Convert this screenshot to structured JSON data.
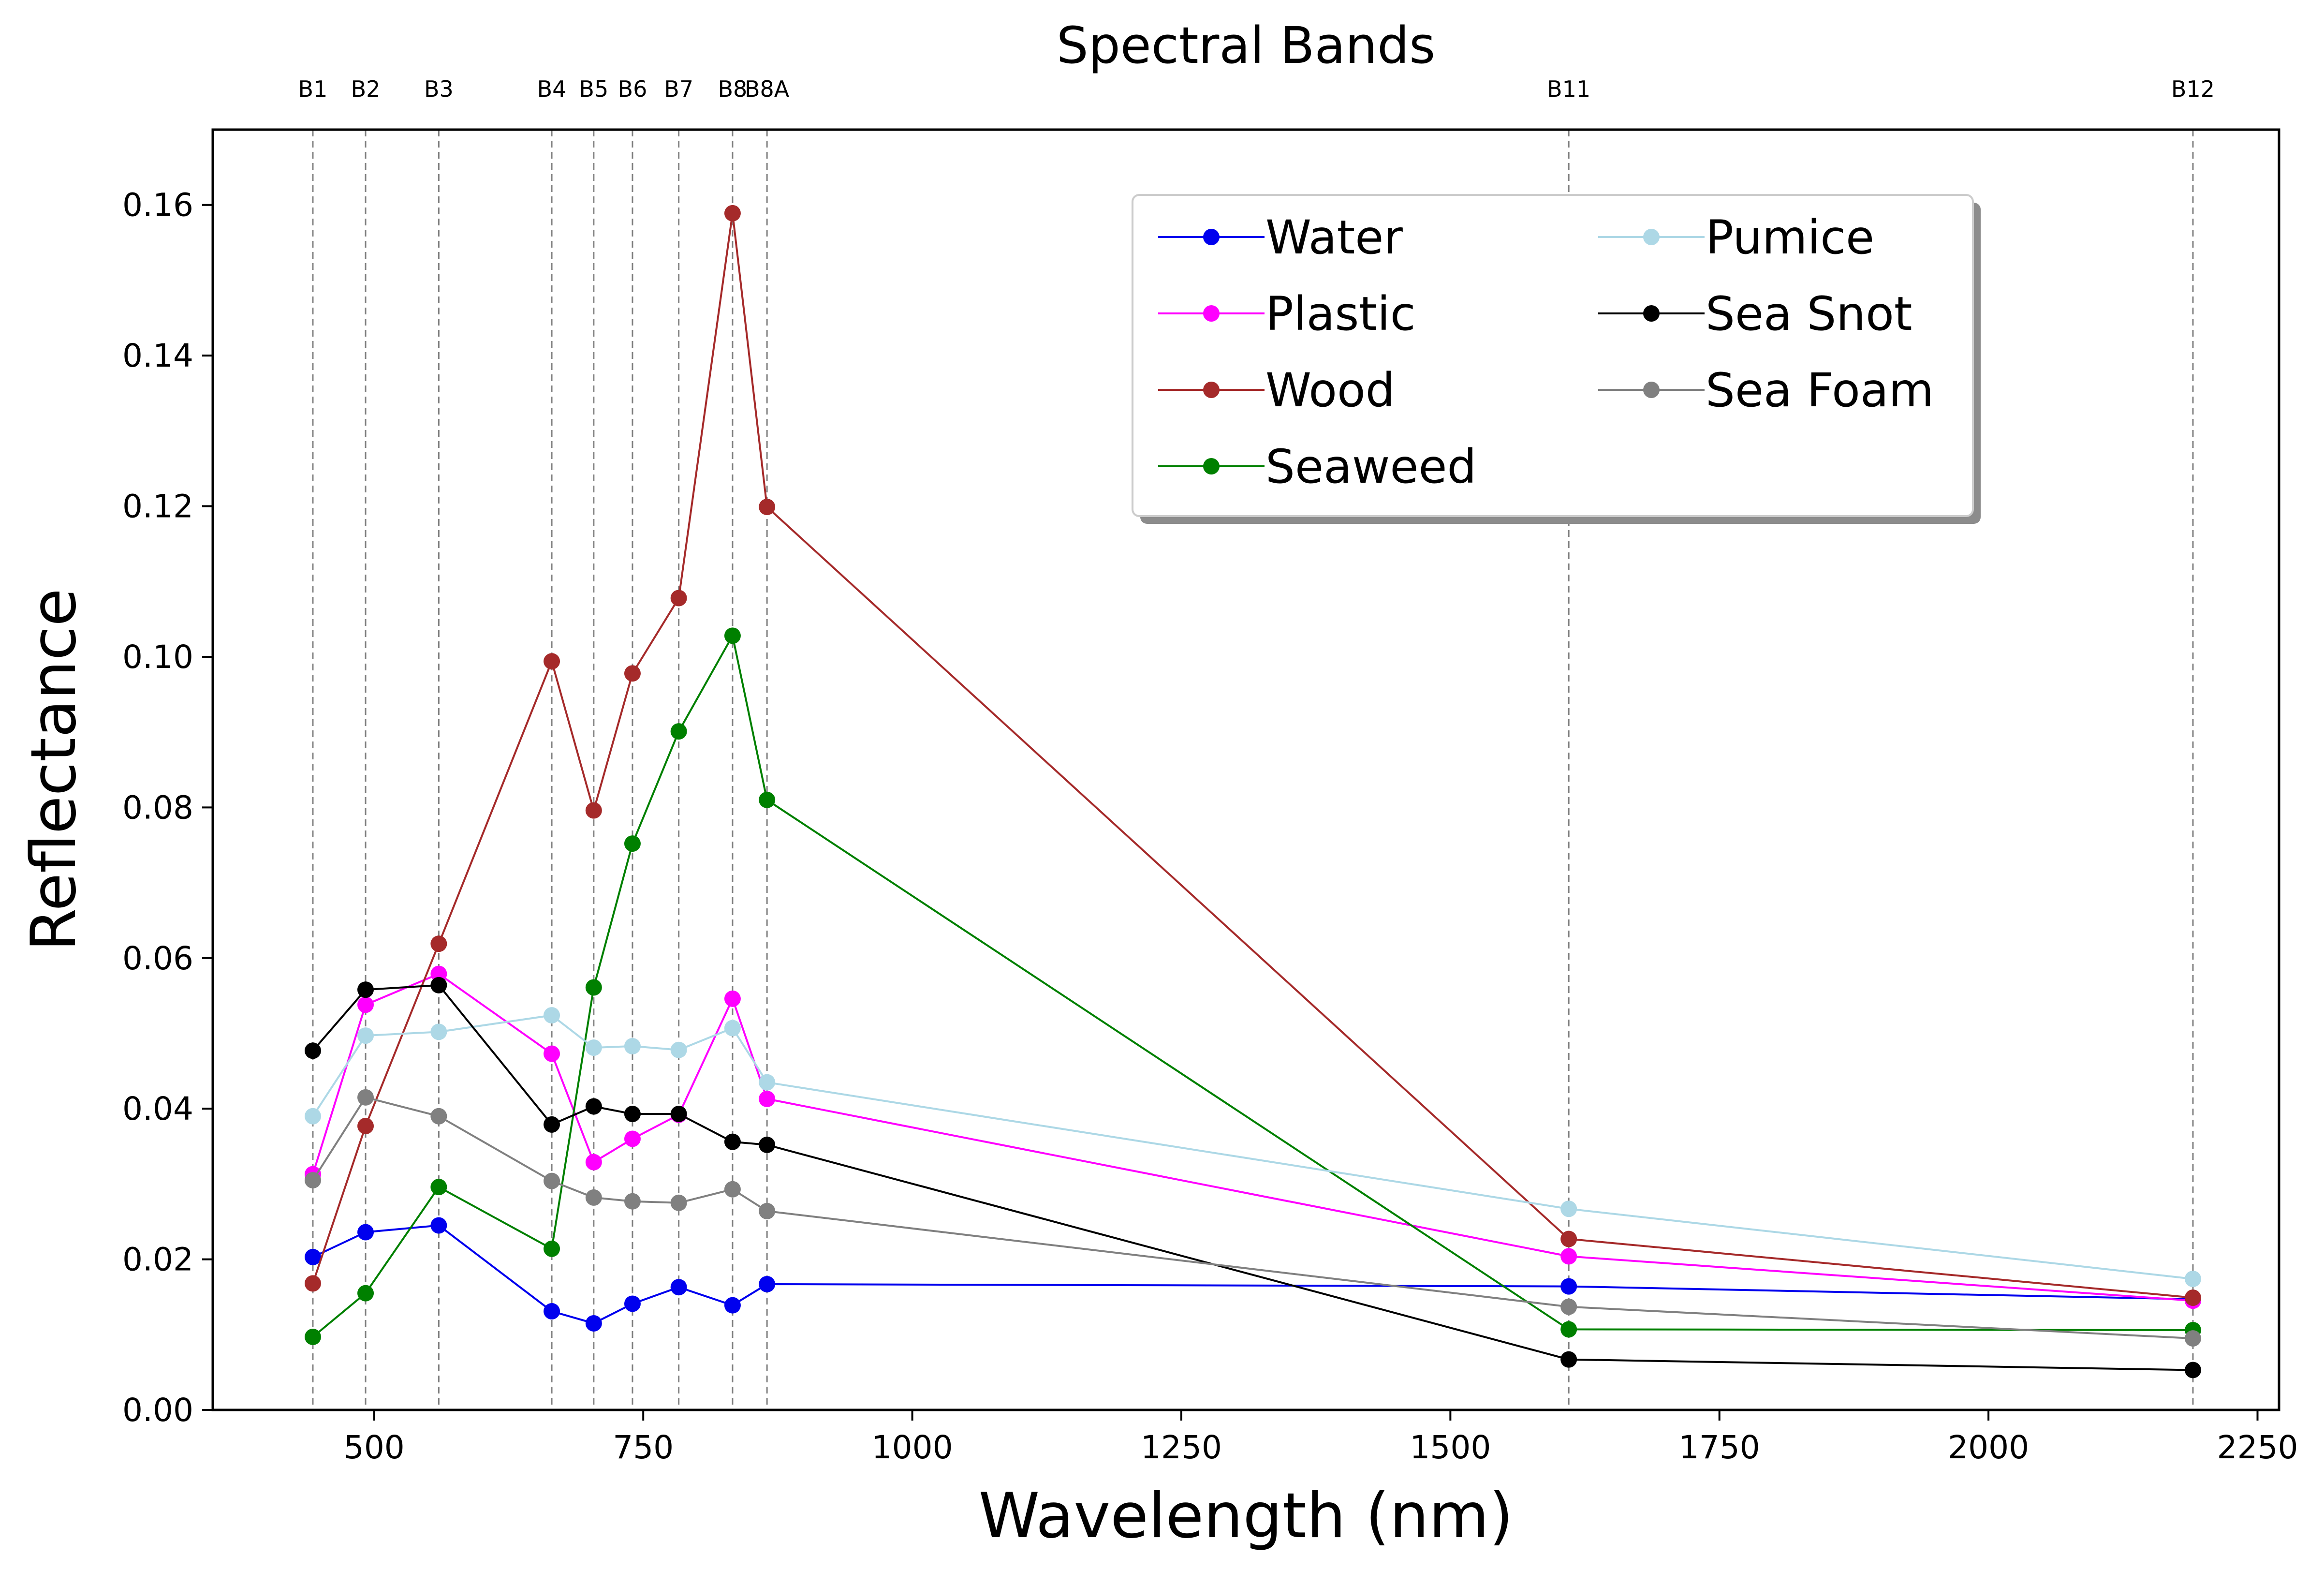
{
  "chart_data": {
    "type": "line",
    "title": "Spectral Bands",
    "xlabel": "Wavelength (nm)",
    "ylabel": "Reflectance",
    "xlim": [
      350,
      2270
    ],
    "ylim": [
      0,
      0.17
    ],
    "xticks": [
      500,
      750,
      1000,
      1250,
      1500,
      1750,
      2000,
      2250
    ],
    "xtick_labels": [
      "500",
      "750",
      "1000",
      "1250",
      "1500",
      "1750",
      "2000",
      "2250"
    ],
    "yticks": [
      0.0,
      0.02,
      0.04,
      0.06,
      0.08,
      0.1,
      0.12,
      0.14,
      0.16
    ],
    "ytick_labels": [
      "0.00",
      "0.02",
      "0.04",
      "0.06",
      "0.08",
      "0.10",
      "0.12",
      "0.14",
      "0.16"
    ],
    "bands": [
      {
        "name": "B1",
        "wavelength": 443
      },
      {
        "name": "B2",
        "wavelength": 492
      },
      {
        "name": "B3",
        "wavelength": 560
      },
      {
        "name": "B4",
        "wavelength": 665
      },
      {
        "name": "B5",
        "wavelength": 704
      },
      {
        "name": "B6",
        "wavelength": 740
      },
      {
        "name": "B7",
        "wavelength": 783
      },
      {
        "name": "B8",
        "wavelength": 833
      },
      {
        "name": "B8A",
        "wavelength": 865
      },
      {
        "name": "B11",
        "wavelength": 1610
      },
      {
        "name": "B12",
        "wavelength": 2190
      }
    ],
    "x": [
      443,
      492,
      560,
      665,
      704,
      740,
      783,
      833,
      865,
      1610,
      2190
    ],
    "legend_position": "upper center-right",
    "series": [
      {
        "name": "Water",
        "color": "#0000ee",
        "values": [
          0.0203,
          0.0236,
          0.0245,
          0.0131,
          0.0115,
          0.0141,
          0.0163,
          0.0139,
          0.0167,
          0.0164,
          0.0147
        ]
      },
      {
        "name": "Plastic",
        "color": "#ff00ff",
        "values": [
          0.0313,
          0.0538,
          0.0579,
          0.0473,
          0.0329,
          0.036,
          0.0392,
          0.0546,
          0.0413,
          0.0204,
          0.0145
        ]
      },
      {
        "name": "Wood",
        "color": "#a52a2a",
        "values": [
          0.0168,
          0.0377,
          0.0619,
          0.0994,
          0.0796,
          0.0978,
          0.1078,
          0.1589,
          0.1199,
          0.0227,
          0.0149
        ]
      },
      {
        "name": "Seaweed",
        "color": "#008000",
        "values": [
          0.0097,
          0.0155,
          0.0296,
          0.0214,
          0.0561,
          0.0752,
          0.0901,
          0.1028,
          0.081,
          0.0107,
          0.0106
        ]
      },
      {
        "name": "Pumice",
        "color": "#add8e6",
        "values": [
          0.039,
          0.0497,
          0.0502,
          0.0524,
          0.0481,
          0.0483,
          0.0478,
          0.0507,
          0.0435,
          0.0267,
          0.0174
        ]
      },
      {
        "name": "Sea Snot",
        "color": "#000000",
        "values": [
          0.0477,
          0.0558,
          0.0564,
          0.0379,
          0.0403,
          0.0393,
          0.0393,
          0.0356,
          0.0352,
          0.0067,
          0.0053
        ]
      },
      {
        "name": "Sea Foam",
        "color": "#808080",
        "values": [
          0.0305,
          0.0415,
          0.039,
          0.0304,
          0.0282,
          0.0277,
          0.0275,
          0.0293,
          0.0264,
          0.0137,
          0.0095
        ]
      }
    ]
  }
}
